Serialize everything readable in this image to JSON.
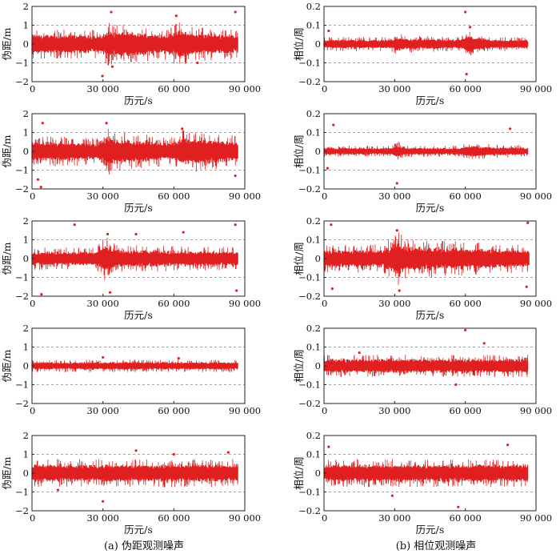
{
  "panel_captions": [
    "(a) 伪距观测噪声",
    "(b) 相位观测噪声"
  ],
  "chart_data": [
    {
      "type": "scatter",
      "column": "a",
      "row": 1,
      "xlabel": "历元/s",
      "ylabel": "伪距/m",
      "xlim": [
        0,
        90000
      ],
      "ylim": [
        -2,
        2
      ],
      "xticks": [
        0,
        30000,
        60000,
        90000
      ],
      "xtick_labels": [
        "0",
        "30 000",
        "60 000",
        "90 000"
      ],
      "yticks": [
        -2,
        -1,
        0,
        1,
        2
      ],
      "ytick_labels": [
        "−2",
        "−1",
        "0",
        "1",
        "2"
      ],
      "grid": "dashed horizontal at ±1",
      "color": "#e02020",
      "data_end": 87000,
      "envelope": [
        [
          0,
          0.55
        ],
        [
          30000,
          0.5
        ],
        [
          31500,
          0.8
        ],
        [
          36000,
          0.7
        ],
        [
          58000,
          0.55
        ],
        [
          61000,
          0.8
        ],
        [
          70000,
          0.6
        ],
        [
          87000,
          0.55
        ]
      ],
      "outliers": [
        [
          33500,
          1.7
        ],
        [
          86000,
          1.7
        ],
        [
          61000,
          1.5
        ],
        [
          29800,
          -1.7
        ],
        [
          34000,
          -1.2
        ],
        [
          70000,
          -1.0
        ]
      ]
    },
    {
      "type": "scatter",
      "column": "b",
      "row": 1,
      "xlabel": "历元/s",
      "ylabel": "相位/周",
      "xlim": [
        0,
        90000
      ],
      "ylim": [
        -0.2,
        0.2
      ],
      "xticks": [
        0,
        30000,
        60000,
        90000
      ],
      "xtick_labels": [
        "0",
        "30 000",
        "60 000",
        "90 000"
      ],
      "yticks": [
        -0.2,
        -0.1,
        0,
        0.1,
        0.2
      ],
      "ytick_labels": [
        "−0.2",
        "−0.1",
        "0",
        "0.1",
        "0.2"
      ],
      "grid": "dashed horizontal at ±0.1",
      "color": "#e02020",
      "data_end": 86500,
      "envelope": [
        [
          0,
          0.025
        ],
        [
          28000,
          0.025
        ],
        [
          31000,
          0.04
        ],
        [
          36000,
          0.03
        ],
        [
          58000,
          0.025
        ],
        [
          61000,
          0.05
        ],
        [
          70000,
          0.025
        ],
        [
          86500,
          0.025
        ]
      ],
      "outliers": [
        [
          60000,
          0.17
        ],
        [
          60500,
          -0.16
        ],
        [
          62000,
          0.09
        ],
        [
          2000,
          0.07
        ]
      ]
    },
    {
      "type": "scatter",
      "column": "a",
      "row": 2,
      "xlabel": "历元/s",
      "ylabel": "伪距/m",
      "xlim": [
        0,
        90000
      ],
      "ylim": [
        -2,
        2
      ],
      "xticks": [
        0,
        30000,
        60000,
        90000
      ],
      "xtick_labels": [
        "0",
        "30 000",
        "60 000",
        "90 000"
      ],
      "yticks": [
        -2,
        -1,
        0,
        1,
        2
      ],
      "ytick_labels": [
        "−2",
        "−1",
        "0",
        "1",
        "2"
      ],
      "grid": "dashed horizontal at ±1",
      "color": "#e02020",
      "data_end": 87000,
      "envelope": [
        [
          0,
          0.55
        ],
        [
          28000,
          0.5
        ],
        [
          31500,
          0.9
        ],
        [
          36000,
          0.7
        ],
        [
          60000,
          0.5
        ],
        [
          63000,
          0.8
        ],
        [
          87000,
          0.55
        ]
      ],
      "outliers": [
        [
          4500,
          1.5
        ],
        [
          31500,
          1.5
        ],
        [
          63500,
          1.2
        ],
        [
          3800,
          -1.9
        ],
        [
          2500,
          -1.5
        ],
        [
          86000,
          -1.3
        ]
      ]
    },
    {
      "type": "scatter",
      "column": "b",
      "row": 2,
      "xlabel": "历元/s",
      "ylabel": "相位/周",
      "xlim": [
        0,
        90000
      ],
      "ylim": [
        -0.2,
        0.2
      ],
      "xticks": [
        0,
        30000,
        60000,
        90000
      ],
      "xtick_labels": [
        "0",
        "30 000",
        "60 000",
        "90 000"
      ],
      "yticks": [
        -0.2,
        -0.1,
        0,
        0.1,
        0.2
      ],
      "ytick_labels": [
        "−0.2",
        "−0.1",
        "0",
        "0.1",
        "0.2"
      ],
      "grid": "dashed horizontal at ±0.1",
      "color": "#e02020",
      "data_end": 86500,
      "envelope": [
        [
          0,
          0.02
        ],
        [
          29000,
          0.02
        ],
        [
          31000,
          0.04
        ],
        [
          34000,
          0.02
        ],
        [
          58000,
          0.02
        ],
        [
          60500,
          0.03
        ],
        [
          86500,
          0.02
        ]
      ],
      "outliers": [
        [
          4000,
          0.14
        ],
        [
          31000,
          -0.17
        ],
        [
          79000,
          0.12
        ],
        [
          1500,
          -0.09
        ]
      ]
    },
    {
      "type": "scatter",
      "column": "a",
      "row": 3,
      "xlabel": "历元/s",
      "ylabel": "伪距/m",
      "xlim": [
        0,
        90000
      ],
      "ylim": [
        -2,
        2
      ],
      "xticks": [
        0,
        30000,
        60000,
        90000
      ],
      "xtick_labels": [
        "0",
        "30 000",
        "60 000",
        "90 000"
      ],
      "yticks": [
        -2,
        -1,
        0,
        1,
        2
      ],
      "ytick_labels": [
        "−2",
        "−1",
        "0",
        "1",
        "2"
      ],
      "grid": "dashed horizontal at ±1",
      "color": "#e02020",
      "data_end": 87000,
      "envelope": [
        [
          0,
          0.4
        ],
        [
          27000,
          0.4
        ],
        [
          31000,
          0.8
        ],
        [
          35000,
          0.5
        ],
        [
          87000,
          0.4
        ]
      ],
      "outliers": [
        [
          18000,
          1.8
        ],
        [
          32000,
          1.3
        ],
        [
          44000,
          1.3
        ],
        [
          64000,
          1.4
        ],
        [
          86000,
          1.8
        ],
        [
          4000,
          -1.9
        ],
        [
          33000,
          -1.8
        ],
        [
          86500,
          -1.7
        ]
      ]
    },
    {
      "type": "scatter",
      "column": "b",
      "row": 3,
      "xlabel": "历元/s",
      "ylabel": "相位/周",
      "xlim": [
        0,
        90000
      ],
      "ylim": [
        -0.2,
        0.2
      ],
      "xticks": [
        0,
        30000,
        60000,
        90000
      ],
      "xtick_labels": [
        "0",
        "30 000",
        "60 000",
        "90 000"
      ],
      "yticks": [
        -0.2,
        -0.1,
        0,
        0.1,
        0.2
      ],
      "ytick_labels": [
        "−0.2",
        "−0.1",
        "0",
        "0.1",
        "0.2"
      ],
      "grid": "dashed horizontal at ±0.1",
      "color": "#e02020",
      "data_end": 87000,
      "envelope": [
        [
          0,
          0.05
        ],
        [
          25000,
          0.05
        ],
        [
          31000,
          0.1
        ],
        [
          35000,
          0.07
        ],
        [
          87000,
          0.05
        ]
      ],
      "outliers": [
        [
          3000,
          0.18
        ],
        [
          31000,
          0.15
        ],
        [
          86500,
          0.19
        ],
        [
          32000,
          -0.17
        ],
        [
          3500,
          -0.16
        ],
        [
          86000,
          -0.15
        ]
      ]
    },
    {
      "type": "scatter",
      "column": "a",
      "row": 4,
      "xlabel": "",
      "ylabel": "伪距/m",
      "xlim": [
        0,
        90000
      ],
      "ylim": [
        -2,
        2
      ],
      "xticks": [
        0,
        30000,
        60000,
        90000
      ],
      "xtick_labels": [
        "0",
        "30 000",
        "60 000",
        "90 000"
      ],
      "yticks": [
        -2,
        -1,
        0,
        1,
        2
      ],
      "ytick_labels": [
        "−2",
        "−1",
        "0",
        "1",
        "2"
      ],
      "grid": "dashed horizontal at ±1",
      "color": "#e02020",
      "data_end": 87000,
      "envelope": [
        [
          0,
          0.22
        ],
        [
          87000,
          0.22
        ]
      ],
      "outliers": [
        [
          30000,
          0.45
        ],
        [
          62000,
          0.4
        ]
      ]
    },
    {
      "type": "scatter",
      "column": "b",
      "row": 4,
      "xlabel": "",
      "ylabel": "相位/周",
      "xlim": [
        0,
        90000
      ],
      "ylim": [
        -0.2,
        0.2
      ],
      "xticks": [
        0,
        30000,
        60000,
        90000
      ],
      "xtick_labels": [
        "0",
        "30 000",
        "60 000",
        "90 000"
      ],
      "yticks": [
        -0.2,
        -0.1,
        0,
        0.1,
        0.2
      ],
      "ytick_labels": [
        "−0.2",
        "−0.1",
        "0",
        "0.1",
        "0.2"
      ],
      "grid": "dashed horizontal at ±0.1",
      "color": "#e02020",
      "data_end": 86500,
      "envelope": [
        [
          0,
          0.04
        ],
        [
          86500,
          0.04
        ]
      ],
      "outliers": [
        [
          60000,
          0.19
        ],
        [
          68000,
          0.12
        ],
        [
          56000,
          -0.1
        ],
        [
          15000,
          0.07
        ]
      ]
    },
    {
      "type": "scatter",
      "column": "a",
      "row": 5,
      "xlabel": "历元/s",
      "ylabel": "伪距/m",
      "xlim": [
        0,
        90000
      ],
      "ylim": [
        -2,
        2
      ],
      "xticks": [
        0,
        30000,
        60000,
        90000
      ],
      "xtick_labels": [
        "0",
        "30 000",
        "60 000",
        "90 000"
      ],
      "yticks": [
        -2,
        -1,
        0,
        1,
        2
      ],
      "ytick_labels": [
        "−2",
        "−1",
        "0",
        "1",
        "2"
      ],
      "grid": "dashed horizontal at ±1",
      "color": "#e02020",
      "data_end": 87000,
      "envelope": [
        [
          0,
          0.5
        ],
        [
          87000,
          0.5
        ]
      ],
      "outliers": [
        [
          44000,
          1.2
        ],
        [
          60000,
          1.0
        ],
        [
          83000,
          1.1
        ],
        [
          30000,
          -1.5
        ],
        [
          11000,
          -0.9
        ]
      ]
    },
    {
      "type": "scatter",
      "column": "b",
      "row": 5,
      "xlabel": "历元/s",
      "ylabel": "相位/周",
      "xlim": [
        0,
        90000
      ],
      "ylim": [
        -0.2,
        0.2
      ],
      "xticks": [
        0,
        30000,
        60000,
        90000
      ],
      "xtick_labels": [
        "0",
        "30 000",
        "60 000",
        "90 000"
      ],
      "yticks": [
        -0.2,
        -0.1,
        0,
        0.1,
        0.2
      ],
      "ytick_labels": [
        "−0.2",
        "−0.1",
        "0",
        "0.1",
        "0.2"
      ],
      "grid": "dashed horizontal at ±0.1",
      "color": "#e02020",
      "data_end": 86500,
      "envelope": [
        [
          0,
          0.05
        ],
        [
          86500,
          0.05
        ]
      ],
      "outliers": [
        [
          78000,
          0.15
        ],
        [
          2000,
          0.14
        ],
        [
          57000,
          -0.18
        ],
        [
          29000,
          -0.12
        ]
      ]
    }
  ]
}
